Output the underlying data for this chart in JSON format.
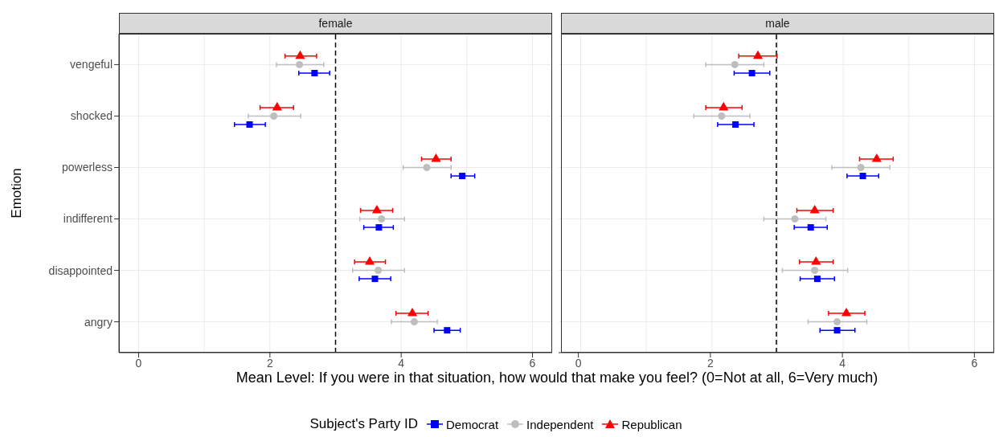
{
  "chart_data": [
    {
      "type": "scatter",
      "orientation": "horizontal",
      "title": "female",
      "ylabel": "Emotion",
      "xlabel": "Mean Level: If you were in that situation, how would that make you feel? (0=Not at all, 6=Very much)",
      "legend_title": "Subject's Party ID",
      "legend": "bottom",
      "grid": true,
      "xlim": [
        -0.3,
        6.3
      ],
      "xticks": [
        0,
        2,
        4,
        6
      ],
      "categories": [
        "vengeful",
        "shocked",
        "powerless",
        "indifferent",
        "disappointed",
        "angry"
      ],
      "ref_lines": [
        {
          "axis": "x",
          "value": 3,
          "line_style": "dashed",
          "color": "#000000"
        }
      ],
      "series": [
        {
          "name": "Democrat",
          "color": "#0000ff",
          "marker": "square",
          "values": [
            2.68,
            1.69,
            4.93,
            3.66,
            3.6,
            4.7
          ],
          "errors": [
            [
              2.44,
              2.91
            ],
            [
              1.46,
              1.93
            ],
            [
              4.76,
              5.12
            ],
            [
              3.43,
              3.88
            ],
            [
              3.36,
              3.84
            ],
            [
              4.5,
              4.9
            ]
          ]
        },
        {
          "name": "Independent",
          "color": "#bebebe",
          "marker": "circle",
          "values": [
            2.45,
            2.06,
            4.39,
            3.7,
            3.65,
            4.2
          ],
          "errors": [
            [
              2.1,
              2.82
            ],
            [
              1.67,
              2.47
            ],
            [
              4.03,
              4.76
            ],
            [
              3.37,
              4.05
            ],
            [
              3.26,
              4.05
            ],
            [
              3.85,
              4.55
            ]
          ]
        },
        {
          "name": "Republican",
          "color": "#ff0000",
          "marker": "triangle",
          "values": [
            2.46,
            2.11,
            4.53,
            3.63,
            3.52,
            4.17
          ],
          "errors": [
            [
              2.23,
              2.71
            ],
            [
              1.85,
              2.36
            ],
            [
              4.31,
              4.76
            ],
            [
              3.38,
              3.87
            ],
            [
              3.29,
              3.76
            ],
            [
              3.92,
              4.41
            ]
          ]
        }
      ]
    },
    {
      "type": "scatter",
      "orientation": "horizontal",
      "title": "male",
      "tick_labels": "x",
      "grid": true,
      "xlim": [
        -0.3,
        6.3
      ],
      "xticks": [
        0,
        2,
        4,
        6
      ],
      "categories": [
        "vengeful",
        "shocked",
        "powerless",
        "indifferent",
        "disappointed",
        "angry"
      ],
      "ref_lines": [
        {
          "axis": "x",
          "value": 3,
          "line_style": "dashed",
          "color": "#000000"
        }
      ],
      "series": [
        {
          "name": "Democrat",
          "color": "#0000ff",
          "marker": "square",
          "values": [
            2.63,
            2.38,
            4.31,
            3.52,
            3.62,
            3.92
          ],
          "errors": [
            [
              2.36,
              2.9
            ],
            [
              2.11,
              2.66
            ],
            [
              4.07,
              4.55
            ],
            [
              3.27,
              3.77
            ],
            [
              3.36,
              3.88
            ],
            [
              3.66,
              4.19
            ]
          ]
        },
        {
          "name": "Independent",
          "color": "#bebebe",
          "marker": "circle",
          "values": [
            2.37,
            2.17,
            4.28,
            3.28,
            3.58,
            3.92
          ],
          "errors": [
            [
              1.93,
              2.81
            ],
            [
              1.75,
              2.6
            ],
            [
              3.84,
              4.72
            ],
            [
              2.81,
              3.75
            ],
            [
              3.09,
              4.08
            ],
            [
              3.48,
              4.37
            ]
          ]
        },
        {
          "name": "Republican",
          "color": "#ff0000",
          "marker": "triangle",
          "values": [
            2.72,
            2.2,
            4.52,
            3.58,
            3.6,
            4.06
          ],
          "errors": [
            [
              2.43,
              3.01
            ],
            [
              1.93,
              2.48
            ],
            [
              4.26,
              4.77
            ],
            [
              3.31,
              3.86
            ],
            [
              3.35,
              3.86
            ],
            [
              3.79,
              4.34
            ]
          ]
        }
      ]
    }
  ]
}
